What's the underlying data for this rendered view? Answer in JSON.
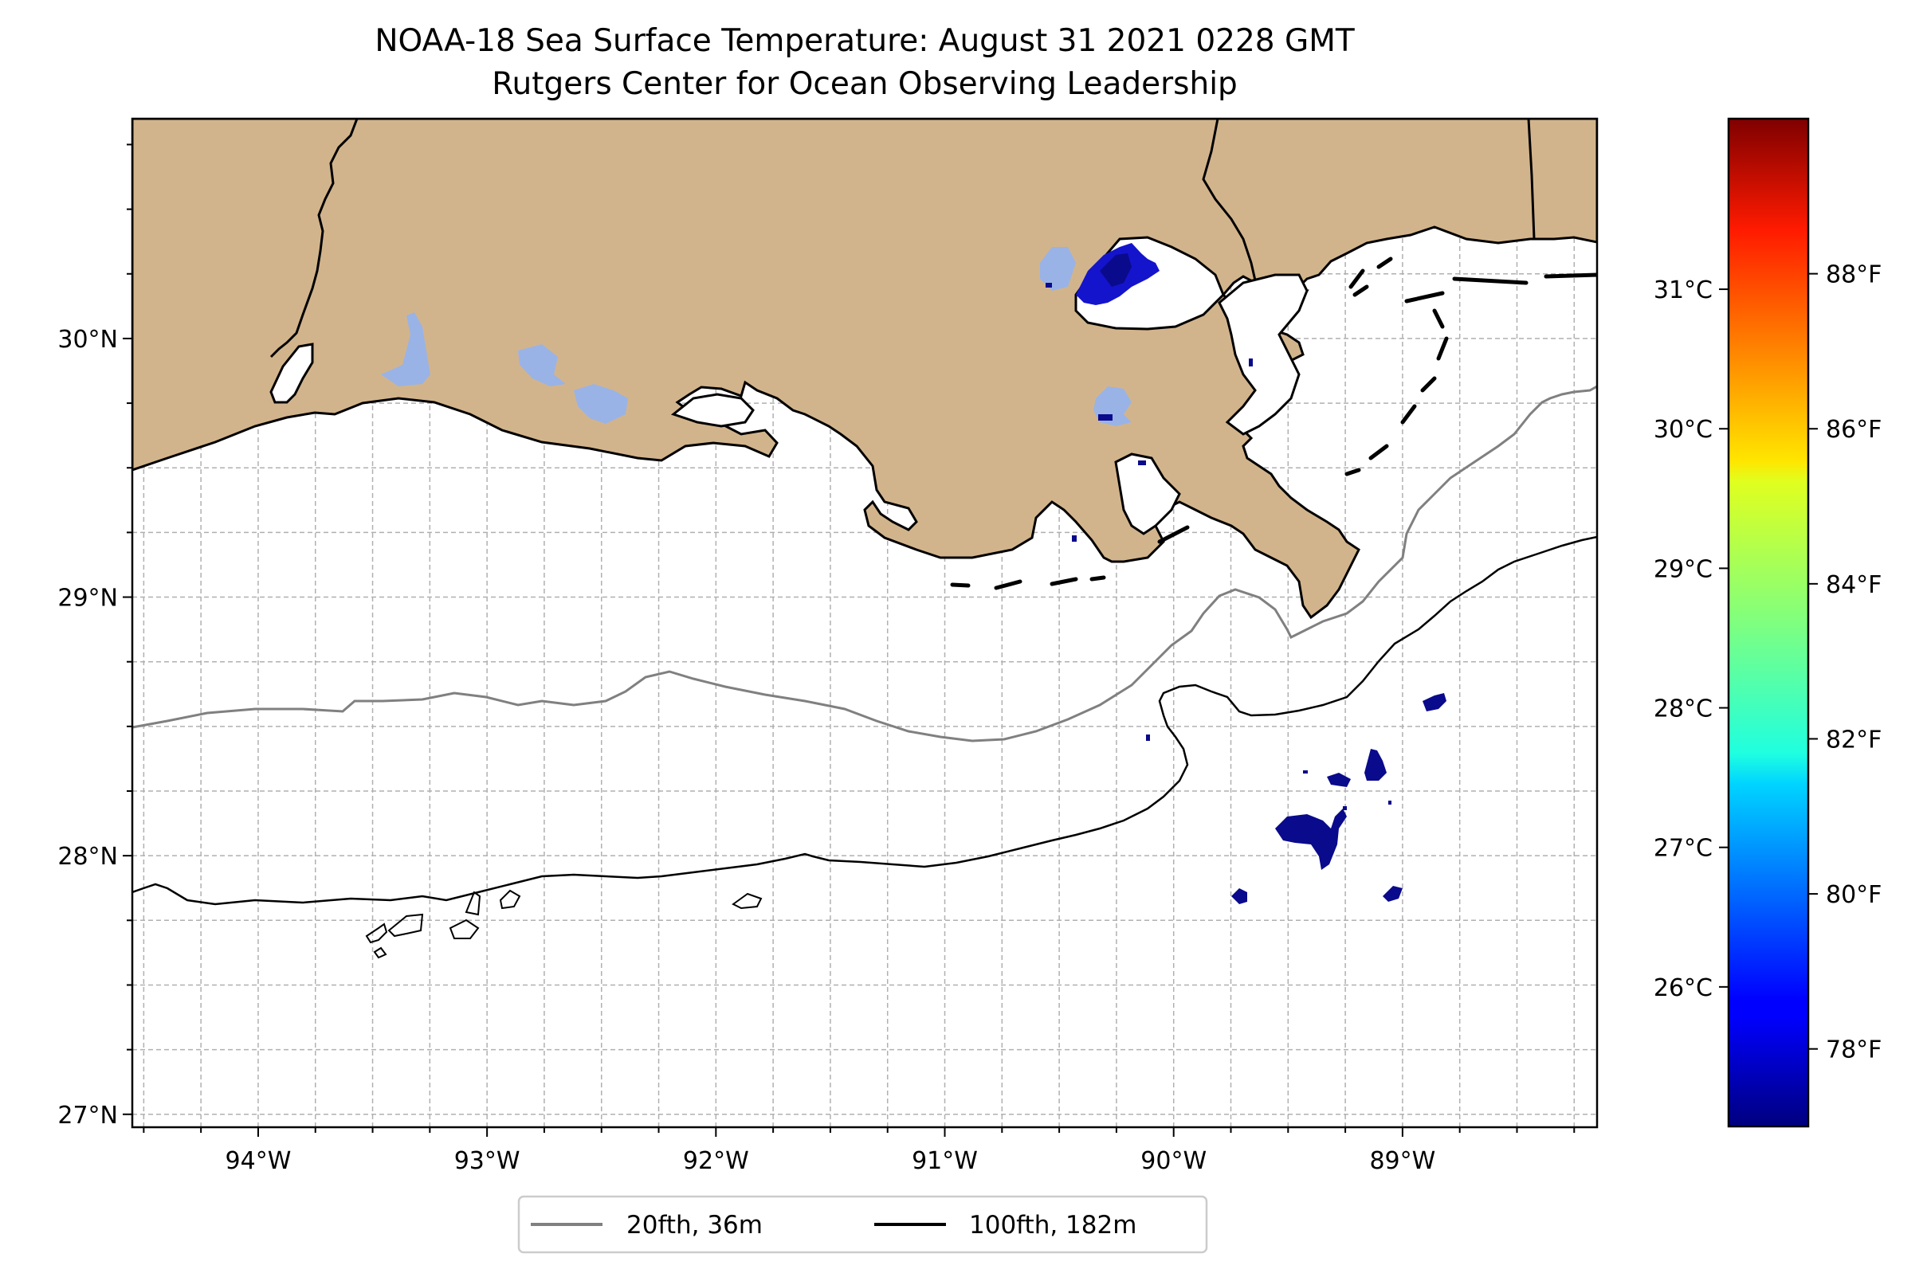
{
  "title": "NOAA-18 Sea Surface Temperature: August 31 2021 0228 GMT",
  "subtitle": "Rutgers Center for Ocean Observing Leadership",
  "map": {
    "lon_range": [
      -94.55,
      -88.15
    ],
    "lat_range": [
      26.95,
      30.85
    ],
    "lon_ticks": [
      {
        "value": -94,
        "label": "94°W"
      },
      {
        "value": -93,
        "label": "93°W"
      },
      {
        "value": -92,
        "label": "92°W"
      },
      {
        "value": -91,
        "label": "91°W"
      },
      {
        "value": -90,
        "label": "90°W"
      },
      {
        "value": -89,
        "label": "89°W"
      }
    ],
    "lat_ticks": [
      {
        "value": 27,
        "label": "27°N"
      },
      {
        "value": 28,
        "label": "28°N"
      },
      {
        "value": 29,
        "label": "29°N"
      },
      {
        "value": 30,
        "label": "30°N"
      }
    ],
    "grid": true,
    "land_color": "#d2b48c",
    "inland_water_color": "#99b3e6",
    "sst_patch_color": "#0a0a8c"
  },
  "colorbar": {
    "colormap": "jet",
    "celsius_ticks": [
      {
        "value": 26,
        "label": "26°C"
      },
      {
        "value": 27,
        "label": "27°C"
      },
      {
        "value": 28,
        "label": "28°C"
      },
      {
        "value": 29,
        "label": "29°C"
      },
      {
        "value": 30,
        "label": "30°C"
      },
      {
        "value": 31,
        "label": "31°C"
      }
    ],
    "fahrenheit_ticks": [
      {
        "value": 78,
        "label": "78°F"
      },
      {
        "value": 80,
        "label": "80°F"
      },
      {
        "value": 82,
        "label": "82°F"
      },
      {
        "value": 84,
        "label": "84°F"
      },
      {
        "value": 86,
        "label": "86°F"
      },
      {
        "value": 88,
        "label": "88°F"
      }
    ],
    "range_f": [
      77,
      90
    ]
  },
  "legend": {
    "placement": "bottom-center",
    "items": [
      {
        "label": "20fth, 36m",
        "color": "#808080"
      },
      {
        "label": "100fth, 182m",
        "color": "#000000"
      }
    ]
  }
}
